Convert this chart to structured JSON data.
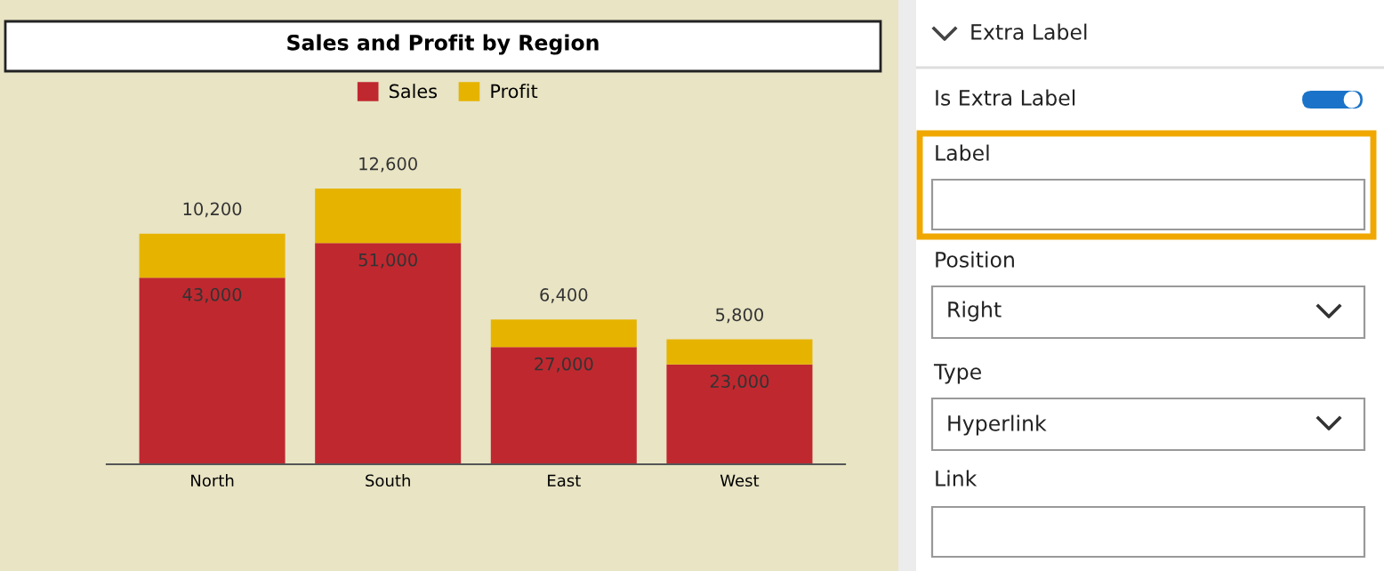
{
  "chart_data": [
    {
      "type": "bar",
      "title": "Sales and Profit by Region",
      "categories": [
        "North",
        "South",
        "East",
        "West"
      ],
      "stacked": true,
      "legend": "top",
      "grid": false,
      "series": [
        {
          "name": "Sales",
          "color": "#c0282f",
          "values": [
            43000,
            51000,
            27000,
            23000
          ],
          "value_labels": [
            "43,000",
            "51,000",
            "27,000",
            "23,000"
          ]
        },
        {
          "name": "Profit",
          "color": "#e6b400",
          "values": [
            10200,
            12600,
            6400,
            5800
          ],
          "value_labels": [
            "10,200",
            "12,600",
            "6,400",
            "5,800"
          ]
        }
      ]
    },
    {
      "type": "other",
      "title": "Extra Label",
      "annotations": [
        "Is Extra Label",
        "Label",
        "Position",
        "Right",
        "Type",
        "Hyperlink",
        "Link"
      ]
    }
  ]
}
